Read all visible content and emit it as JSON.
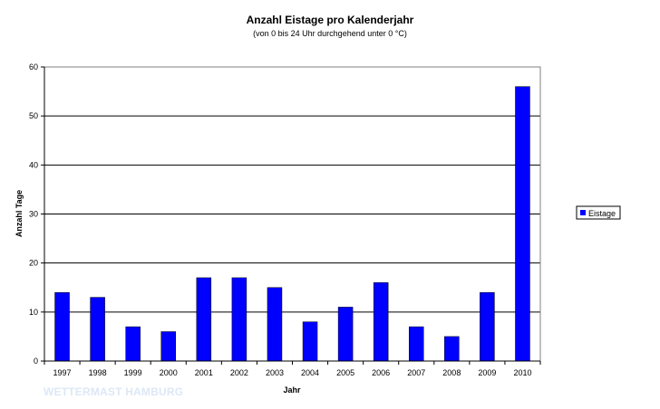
{
  "chart_data": {
    "type": "bar",
    "title": "Anzahl Eistage pro Kalenderjahr",
    "subtitle": "(von 0 bis 24 Uhr durchgehend unter 0 °C)",
    "xlabel": "Jahr",
    "ylabel": "Anzahl Tage",
    "categories": [
      "1997",
      "1998",
      "1999",
      "2000",
      "2001",
      "2002",
      "2003",
      "2004",
      "2005",
      "2006",
      "2007",
      "2008",
      "2009",
      "2010"
    ],
    "series": [
      {
        "name": "Eistage",
        "color": "#0000ff",
        "values": [
          14,
          13,
          7,
          6,
          17,
          17,
          15,
          8,
          11,
          16,
          7,
          5,
          14,
          56
        ]
      }
    ],
    "ylim": [
      0,
      60
    ],
    "yticks": [
      0,
      10,
      20,
      30,
      40,
      50,
      60
    ],
    "grid": true,
    "legend": "right"
  },
  "watermark": "WETTERMAST HAMBURG"
}
